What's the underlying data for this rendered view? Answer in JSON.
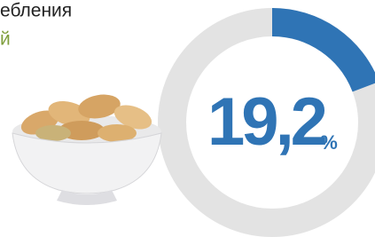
{
  "chart_data": {
    "type": "donut",
    "title": "ебления",
    "subtitle": "й",
    "values": [
      19.2
    ],
    "value_labels": [
      "19,2"
    ],
    "value_unit": "%",
    "color": "#2f74b5",
    "track_color": "#e3e3e3"
  }
}
